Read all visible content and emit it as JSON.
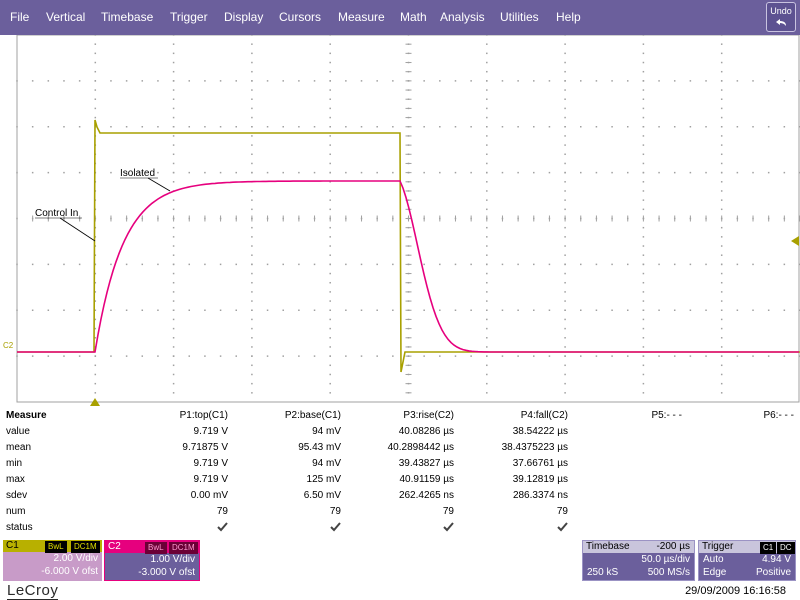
{
  "menu": {
    "items": [
      "File",
      "Vertical",
      "Timebase",
      "Trigger",
      "Display",
      "Cursors",
      "Measure",
      "Math",
      "Analysis",
      "Utilities",
      "Help"
    ],
    "undo_label": "Undo"
  },
  "scope": {
    "trace_labels": {
      "control_in": "Control In",
      "isolated": "Isolated"
    },
    "channel_marker": "C2",
    "colors": {
      "c1": "#a8a000",
      "c2": "#e6007e",
      "grid": "#a0a0a0"
    },
    "icons": [
      "trigger-level-arrow-icon",
      "trigger-position-arrow-icon"
    ]
  },
  "measure": {
    "title": "Measure",
    "columns": [
      "P1:top(C1)",
      "P2:base(C1)",
      "P3:rise(C2)",
      "P4:fall(C2)",
      "P5:- - -",
      "P6:- - -"
    ],
    "rows": [
      {
        "label": "value",
        "cells": [
          "9.719 V",
          "94 mV",
          "40.08286 µs",
          "38.54222 µs",
          "",
          ""
        ]
      },
      {
        "label": "mean",
        "cells": [
          "9.71875 V",
          "95.43 mV",
          "40.2898442 µs",
          "38.4375223 µs",
          "",
          ""
        ]
      },
      {
        "label": "min",
        "cells": [
          "9.719 V",
          "94 mV",
          "39.43827 µs",
          "37.66761 µs",
          "",
          ""
        ]
      },
      {
        "label": "max",
        "cells": [
          "9.719 V",
          "125 mV",
          "40.91159 µs",
          "39.12819 µs",
          "",
          ""
        ]
      },
      {
        "label": "sdev",
        "cells": [
          "0.00 mV",
          "6.50 mV",
          "262.4265 ns",
          "286.3374 ns",
          "",
          ""
        ]
      },
      {
        "label": "num",
        "cells": [
          "79",
          "79",
          "79",
          "79",
          "",
          ""
        ]
      }
    ],
    "status_label": "status",
    "status_icon": "check-icon"
  },
  "channels": {
    "c1": {
      "name": "C1",
      "tags": [
        "BwL",
        "DC1M"
      ],
      "vdiv": "2.00 V/div",
      "offset": "-6.000 V ofst"
    },
    "c2": {
      "name": "C2",
      "tags": [
        "BwL",
        "DC1M"
      ],
      "vdiv": "1.00 V/div",
      "offset": "-3.000 V ofst"
    }
  },
  "timebase": {
    "label": "Timebase",
    "delay": "-200 µs",
    "tdiv": "50.0 µs/div",
    "samples": "250 kS",
    "rate": "500 MS/s"
  },
  "trigger": {
    "label": "Trigger",
    "tags": [
      "C1",
      "DC"
    ],
    "mode": "Auto",
    "level": "4.94 V",
    "type": "Edge",
    "slope": "Positive"
  },
  "footer": {
    "logo": "LeCroy",
    "datetime": "29/09/2009 16:16:58"
  }
}
